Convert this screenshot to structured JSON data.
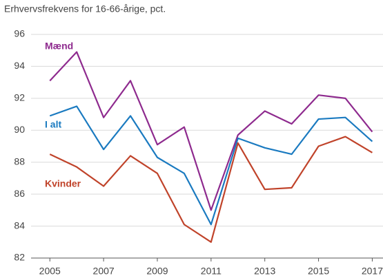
{
  "chart_data": {
    "type": "line",
    "title": "Erhvervsfrekvens for 16-66-årige, pct.",
    "x": [
      2005,
      2006,
      2007,
      2008,
      2009,
      2010,
      2011,
      2012,
      2013,
      2014,
      2015,
      2016,
      2017
    ],
    "series": [
      {
        "name": "Mænd",
        "color": "#8e2a8e",
        "values": [
          93.1,
          94.9,
          90.8,
          93.1,
          89.1,
          90.2,
          85.0,
          89.7,
          91.2,
          90.4,
          92.2,
          92.0,
          89.9
        ]
      },
      {
        "name": "I alt",
        "color": "#1a7ac0",
        "values": [
          90.9,
          91.5,
          88.8,
          90.9,
          88.3,
          87.3,
          84.1,
          89.5,
          88.9,
          88.5,
          90.7,
          90.8,
          89.3
        ]
      },
      {
        "name": "Kvinder",
        "color": "#c0432a",
        "values": [
          88.5,
          87.7,
          86.5,
          88.4,
          87.3,
          84.1,
          83.0,
          89.2,
          86.3,
          86.4,
          89.0,
          89.6,
          88.6
        ]
      }
    ],
    "xlim": [
      2004.3,
      2017.4
    ],
    "xticks": [
      2005,
      2007,
      2009,
      2011,
      2013,
      2015,
      2017
    ],
    "ylim": [
      82,
      96
    ],
    "yticks": [
      82,
      84,
      86,
      88,
      90,
      92,
      94,
      96
    ],
    "grid": true
  }
}
